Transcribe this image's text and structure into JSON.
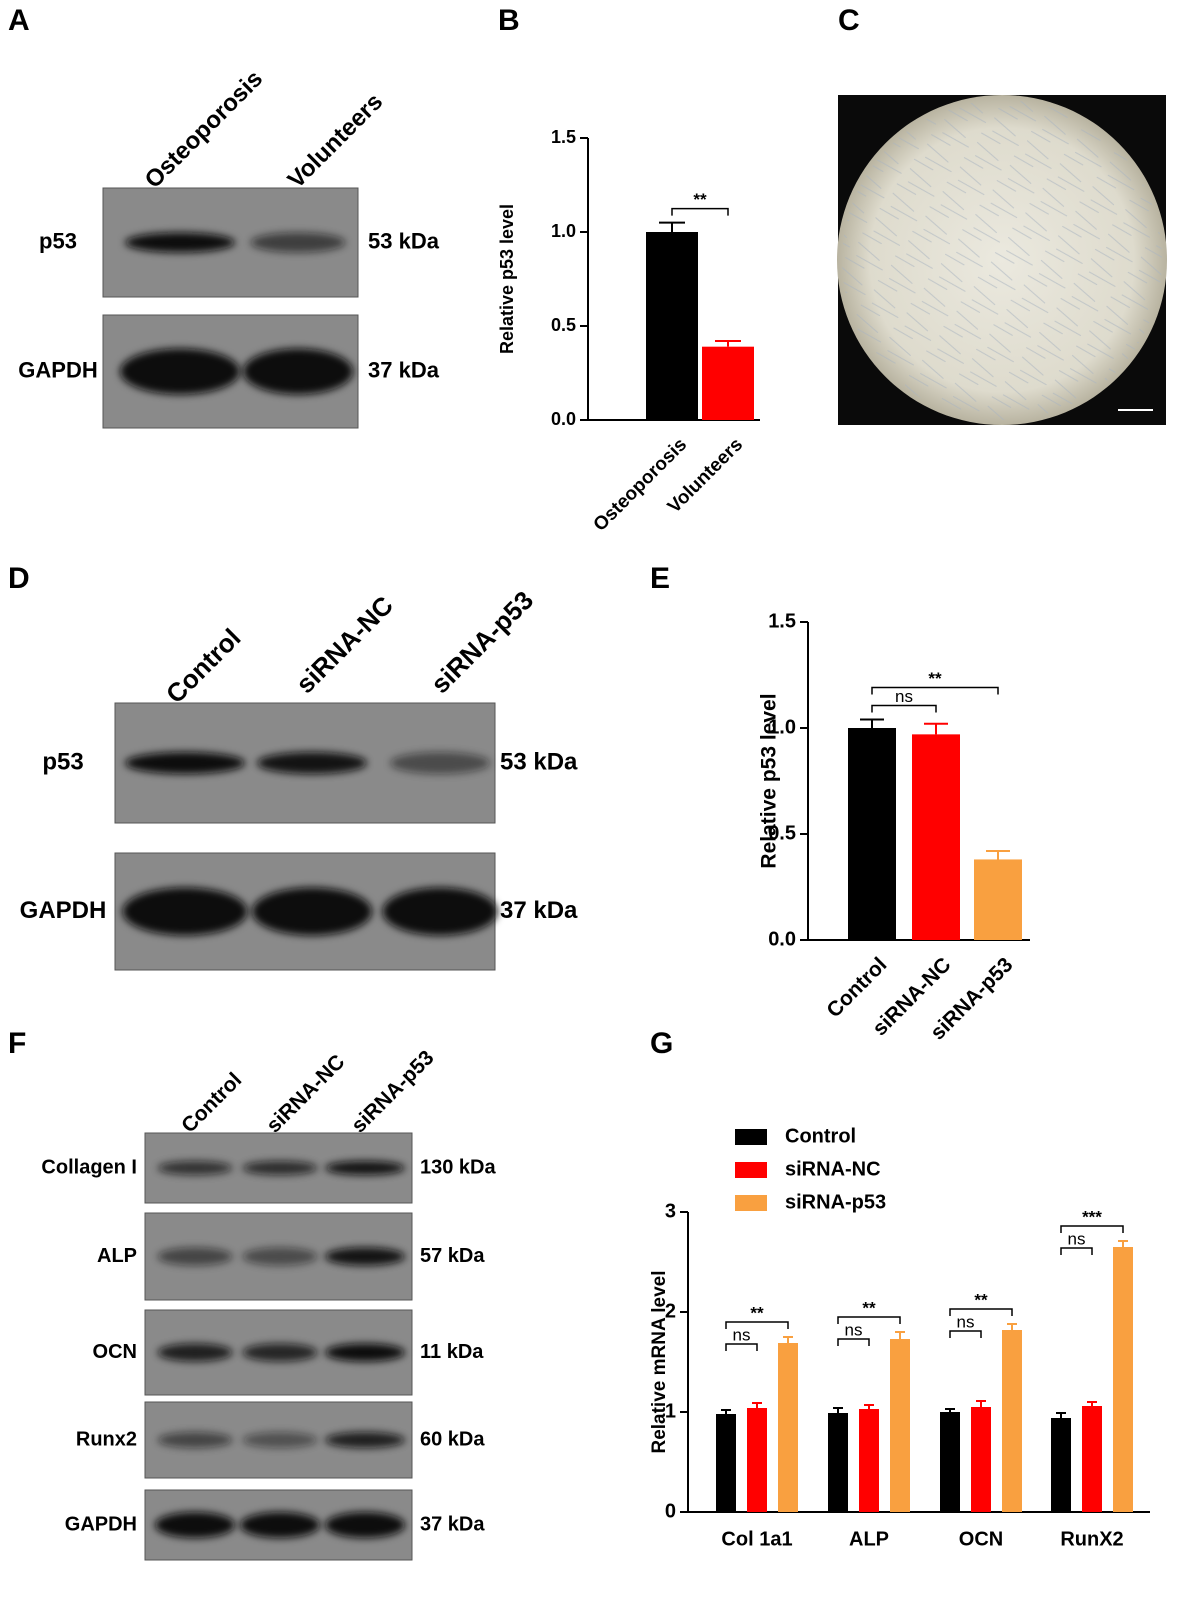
{
  "panel_labels": [
    "A",
    "B",
    "C",
    "D",
    "E",
    "F",
    "G"
  ],
  "blot_a": {
    "lanes": [
      "Osteoporosis",
      "Volunteers"
    ],
    "rows": [
      {
        "protein": "p53",
        "size": "53 kDa"
      },
      {
        "protein": "GAPDH",
        "size": "37 kDa"
      }
    ]
  },
  "blot_d": {
    "lanes": [
      "Control",
      "siRNA-NC",
      "siRNA-p53"
    ],
    "rows": [
      {
        "protein": "p53",
        "size": "53 kDa"
      },
      {
        "protein": "GAPDH",
        "size": "37 kDa"
      }
    ]
  },
  "blot_f": {
    "lanes": [
      "Control",
      "siRNA-NC",
      "siRNA-p53"
    ],
    "rows": [
      {
        "protein": "Collagen I",
        "size": "130 kDa"
      },
      {
        "protein": "ALP",
        "size": "57 kDa"
      },
      {
        "protein": "OCN",
        "size": "11 kDa"
      },
      {
        "protein": "Runx2",
        "size": "60 kDa"
      },
      {
        "protein": "GAPDH",
        "size": "37 kDa"
      }
    ]
  },
  "chart_data": [
    {
      "type": "bar",
      "y_label": "Relative p53 level",
      "categories": [
        "Osteoporosis",
        "Volunteers"
      ],
      "values": [
        1.0,
        0.39
      ],
      "errors": [
        0.05,
        0.03
      ],
      "colors": [
        "#000000",
        "#ff0000"
      ],
      "ylim": [
        0,
        1.5
      ],
      "yticks": [
        {
          "value": 0,
          "label": "0.0"
        },
        {
          "value": 0.5,
          "label": "0.5"
        },
        {
          "value": 1,
          "label": "1.0"
        },
        {
          "value": 1.5,
          "label": "1.5"
        }
      ],
      "annotations": [
        "**"
      ]
    },
    {
      "type": "bar",
      "y_label": "Relative p53 level",
      "categories": [
        "Control",
        "siRNA-NC",
        "siRNA-p53"
      ],
      "values": [
        1.0,
        0.97,
        0.38
      ],
      "errors": [
        0.04,
        0.05,
        0.04
      ],
      "colors": [
        "#000000",
        "#ff0000",
        "#f9a040"
      ],
      "ylim": [
        0,
        1.5
      ],
      "yticks": [
        {
          "value": 0,
          "label": "0.0"
        },
        {
          "value": 0.5,
          "label": "0.5"
        },
        {
          "value": 1,
          "label": "1.0"
        },
        {
          "value": 1.5,
          "label": "1.5"
        }
      ],
      "annotations": [
        "ns",
        "**"
      ]
    },
    {
      "type": "grouped-bar",
      "y_label": "Relative mRNA level",
      "categories": [
        "Col 1a1",
        "ALP",
        "OCN",
        "RunX2"
      ],
      "series": [
        {
          "name": "Control",
          "color": "#000000",
          "values": [
            0.98,
            0.99,
            1.0,
            0.94
          ],
          "errors": [
            0.04,
            0.05,
            0.03,
            0.05
          ]
        },
        {
          "name": "siRNA-NC",
          "color": "#ff0000",
          "values": [
            1.04,
            1.03,
            1.05,
            1.06
          ],
          "errors": [
            0.05,
            0.04,
            0.06,
            0.04
          ]
        },
        {
          "name": "siRNA-p53",
          "color": "#f9a040",
          "values": [
            1.69,
            1.73,
            1.82,
            2.65
          ],
          "errors": [
            0.06,
            0.07,
            0.06,
            0.06
          ]
        }
      ],
      "ylim": [
        0,
        3
      ],
      "yticks": [
        0,
        1,
        2,
        3
      ],
      "annotations": [
        [
          "ns",
          "**"
        ],
        [
          "ns",
          "**"
        ],
        [
          "ns",
          "**"
        ],
        [
          "ns",
          "***"
        ]
      ]
    }
  ]
}
